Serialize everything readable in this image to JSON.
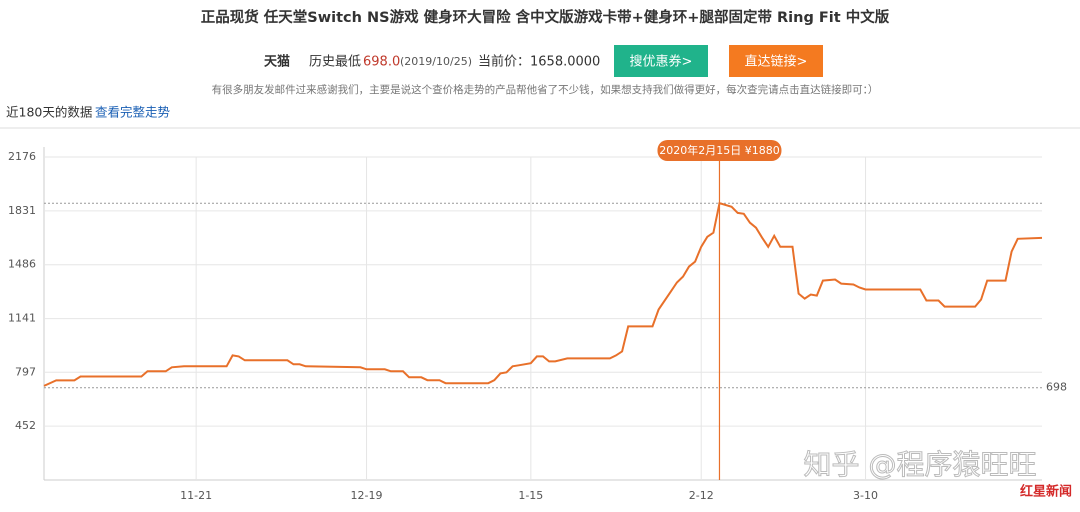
{
  "header": {
    "title": "正品现货 任天堂Switch NS游戏 健身环大冒险 含中文版游戏卡带+健身环+腿部固定带 Ring Fit 中文版",
    "store": "天猫",
    "lowest_label": "历史最低",
    "lowest_price": "698.0",
    "lowest_date": "(2019/10/25)",
    "current": "当前价：1658.0000",
    "buttons": [
      "搜优惠券>",
      "直达链接>"
    ],
    "note": "有很多朋友发邮件过来感谢我们，主要是说这个查价格走势的产品帮他省了不少钱，如果想支持我们做得更好，每次查完请点击直达链接即可：）",
    "range_label": "近180天的数据",
    "range_link": "查看完整走势"
  },
  "chart_data": {
    "type": "line",
    "x": [
      "10-27",
      "10-29",
      "11-01",
      "11-02",
      "11-12",
      "11-13",
      "11-16",
      "11-17",
      "11-19",
      "11-26",
      "11-27",
      "11-28",
      "11-29",
      "12-06",
      "12-07",
      "12-08",
      "12-09",
      "12-18",
      "12-19",
      "12-22",
      "12-23",
      "12-25",
      "12-26",
      "12-28",
      "12-29",
      "12-31",
      "01-01",
      "01-08",
      "01-09",
      "01-10",
      "01-11",
      "01-12",
      "01-13",
      "01-15",
      "01-16",
      "01-17",
      "01-18",
      "01-19",
      "01-21",
      "01-28",
      "01-29",
      "01-30",
      "01-31",
      "02-04",
      "02-05",
      "02-07",
      "02-08",
      "02-09",
      "02-10",
      "02-11",
      "02-12",
      "02-13",
      "02-14",
      "02-15",
      "02-17",
      "02-18",
      "02-19",
      "02-20",
      "02-21",
      "02-22",
      "02-23",
      "02-24",
      "02-25",
      "02-27",
      "02-28",
      "02-29",
      "03-01",
      "03-02",
      "03-03",
      "03-05",
      "03-06",
      "03-08",
      "03-09",
      "03-10",
      "03-19",
      "03-20",
      "03-22",
      "03-23",
      "03-28",
      "03-29",
      "03-30",
      "04-02",
      "04-03",
      "04-04",
      "04-08"
    ],
    "series": [
      {
        "color": "#e8702a",
        "values": [
          710,
          745,
          745,
          770,
          770,
          803,
          803,
          829,
          835,
          835,
          905,
          899,
          874,
          874,
          848,
          848,
          835,
          829,
          816,
          816,
          803,
          803,
          765,
          765,
          746,
          746,
          727,
          727,
          746,
          790,
          797,
          835,
          842,
          855,
          899,
          899,
          867,
          867,
          886,
          886,
          905,
          931,
          1091,
          1091,
          1199,
          1314,
          1372,
          1410,
          1474,
          1506,
          1601,
          1665,
          1691,
          1880,
          1857,
          1818,
          1812,
          1755,
          1723,
          1659,
          1601,
          1671,
          1601,
          1601,
          1301,
          1269,
          1295,
          1288,
          1384,
          1391,
          1365,
          1359,
          1340,
          1327,
          1327,
          1257,
          1257,
          1218,
          1218,
          1263,
          1384,
          1384,
          1570,
          1652,
          1658
        ]
      }
    ],
    "xlim": [
      "10-27",
      "04-08"
    ],
    "xticks": [
      "11-21",
      "12-19",
      "01-15",
      "02-12",
      "03-10"
    ],
    "xtick_labels": [
      "11-21",
      "12-19",
      "1-15",
      "2-12",
      "3-10"
    ],
    "ylim": [
      107,
      2176
    ],
    "yticks": [
      452,
      797,
      1141,
      1486,
      1831,
      2176
    ],
    "grid": true,
    "max_line": 1880,
    "min_line": 698,
    "annotation": {
      "text": "2020年2月15日 ¥1880",
      "x": "02-15"
    }
  },
  "watermarks": [
    "知乎 @程序猿旺旺",
    "红星新闻"
  ]
}
